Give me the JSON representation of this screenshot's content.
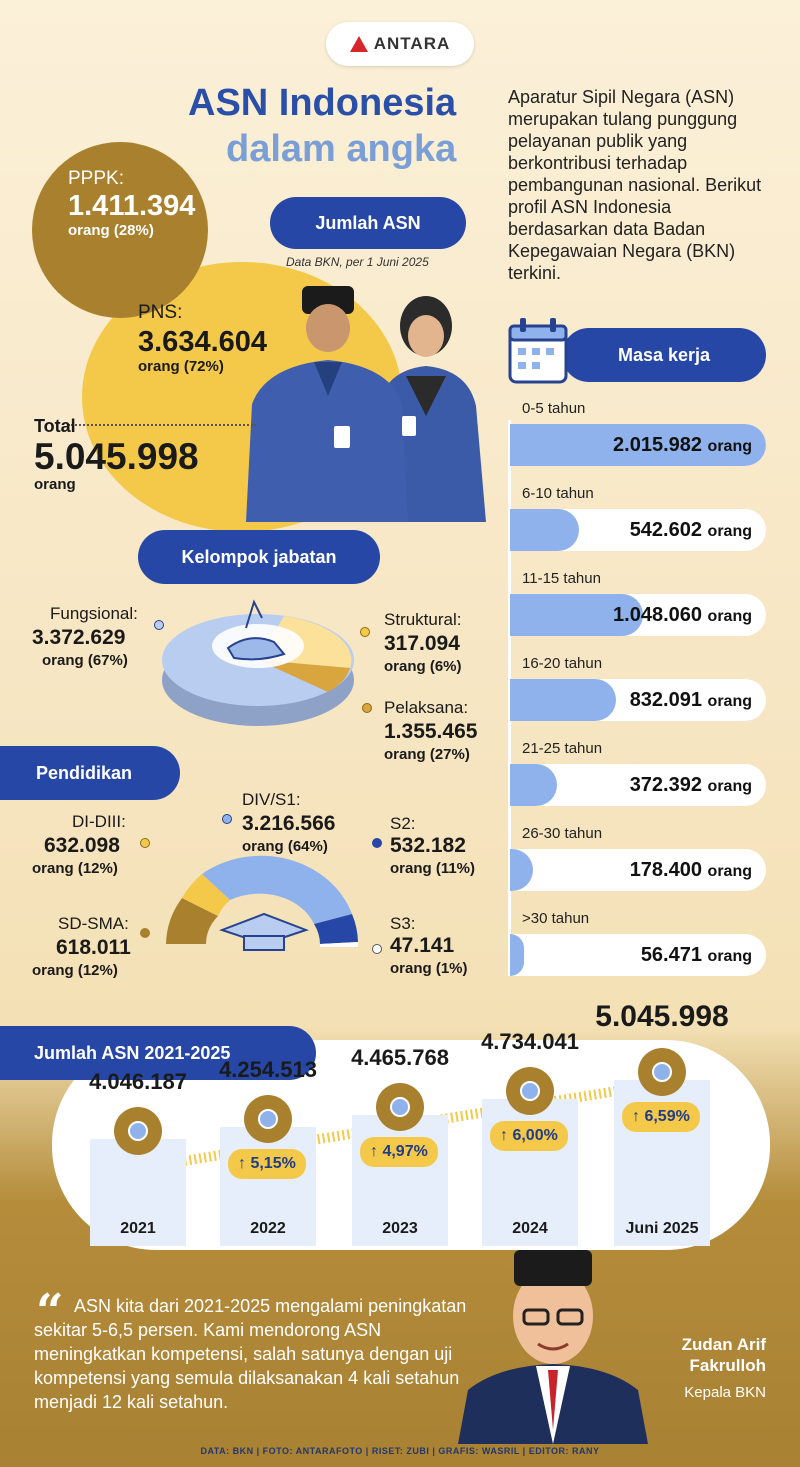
{
  "brand": {
    "logo_text": "ANTARA"
  },
  "title": {
    "line1": "ASN Indonesia",
    "line2": "dalam angka"
  },
  "intro": "Aparatur Sipil Negara (ASN) merupakan tulang punggung pelayanan publik yang berkontribusi terhadap pembangunan nasional. Berikut profil ASN Indonesia berdasarkan data Badan Kepegawaian Negara (BKN) terkini.",
  "jumlah": {
    "heading": "Jumlah ASN",
    "note": "Data BKN, per 1 Juni 2025",
    "pppk": {
      "label": "PPPK:",
      "value": "1.411.394",
      "sub": "orang (28%)"
    },
    "pns": {
      "label": "PNS:",
      "value": "3.634.604",
      "sub": "orang (72%)"
    },
    "total": {
      "label": "Total",
      "value": "5.045.998",
      "sub": "orang"
    }
  },
  "kelompok": {
    "heading": "Kelompok jabatan",
    "items": [
      {
        "label": "Fungsional:",
        "value": "3.372.629",
        "sub": "orang (67%)",
        "share": 67,
        "color": "#b9cdf0"
      },
      {
        "label": "Struktural:",
        "value": "317.094",
        "sub": "orang (6%)",
        "share": 6,
        "color": "#d9a53e"
      },
      {
        "label": "Pelaksana:",
        "value": "1.355.465",
        "sub": "orang (27%)",
        "share": 27,
        "color": "#fbe19a"
      }
    ]
  },
  "pendidikan": {
    "heading": "Pendidikan",
    "items": [
      {
        "label": "SD-SMA:",
        "value": "618.011",
        "sub": "orang (12%)",
        "share": 12,
        "color": "#a9812e"
      },
      {
        "label": "DI-DIII:",
        "value": "632.098",
        "sub": "orang (12%)",
        "share": 12,
        "color": "#f4c94a"
      },
      {
        "label": "DIV/S1:",
        "value": "3.216.566",
        "sub": "orang (64%)",
        "share": 64,
        "color": "#8fb2ec"
      },
      {
        "label": "S2:",
        "value": "532.182",
        "sub": "orang (11%)",
        "share": 11,
        "color": "#2747a6"
      },
      {
        "label": "S3:",
        "value": "47.141",
        "sub": "orang (1%)",
        "share": 1,
        "color": "#ffffff"
      }
    ]
  },
  "masa_kerja": {
    "heading": "Masa kerja",
    "unit": "orang",
    "items": [
      {
        "range": "0-5 tahun",
        "value": "2.015.982",
        "count": 2015982
      },
      {
        "range": "6-10 tahun",
        "value": "542.602",
        "count": 542602
      },
      {
        "range": "11-15 tahun",
        "value": "1.048.060",
        "count": 1048060
      },
      {
        "range": "16-20 tahun",
        "value": "832.091",
        "count": 832091
      },
      {
        "range": "21-25 tahun",
        "value": "372.392",
        "count": 372392
      },
      {
        "range": "26-30 tahun",
        "value": "178.400",
        "count": 178400
      },
      {
        "range": ">30 tahun",
        "value": "56.471",
        "count": 56471
      }
    ]
  },
  "chart_data": {
    "type": "bar",
    "title": "Jumlah ASN 2021-2025",
    "categories": [
      "2021",
      "2022",
      "2023",
      "2024",
      "Juni 2025"
    ],
    "values": [
      4046187,
      4254513,
      4465768,
      4734041,
      5045998
    ],
    "value_labels": [
      "4.046.187",
      "4.254.513",
      "4.465.768",
      "4.734.041",
      "5.045.998"
    ],
    "growth_labels": [
      "",
      "↑ 5,15%",
      "↑ 4,97%",
      "↑ 6,00%",
      "↑ 6,59%"
    ],
    "colors": {
      "bar": "#e6eefb",
      "node": "#a9812e",
      "badge": "#f4c94a"
    }
  },
  "quote": {
    "text": "ASN kita dari 2021-2025 mengalami peningkatan sekitar 5-6,5 persen. Kami mendorong ASN meningkatkan kompetensi, salah satunya dengan uji kompetensi yang semula dilaksanakan 4 kali setahun menjadi 12 kali setahun.",
    "name": "Zudan Arif Fakrulloh",
    "role": "Kepala BKN"
  },
  "footer": "DATA: BKN   |   FOTO: ANTARAFOTO   |   RISET: ZUBI   |   GRAFIS: WASRIL   |   EDITOR: RANY"
}
